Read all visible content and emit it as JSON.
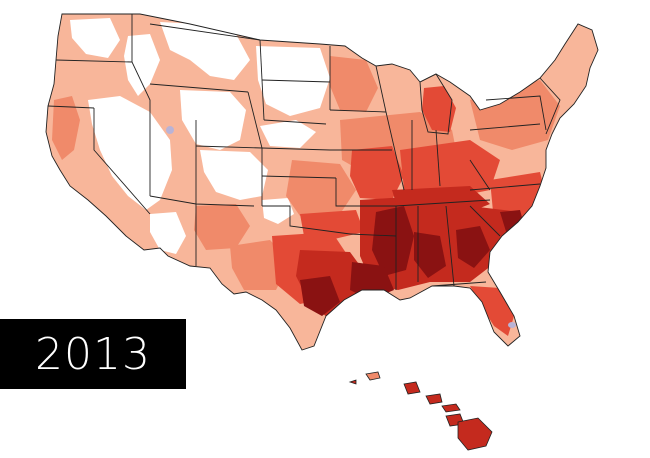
{
  "year_label": "2013",
  "colors": {
    "background": "#ffffff",
    "none": "#ffffff",
    "low": "#f8b69a",
    "medium_low": "#f08a6a",
    "medium": "#e34a36",
    "high": "#c42a1e",
    "very_high": "#8a1212",
    "anomaly": "#b9b3d6",
    "border": "#222222",
    "badge_bg": "#000000",
    "badge_text": "#ffffff"
  }
}
